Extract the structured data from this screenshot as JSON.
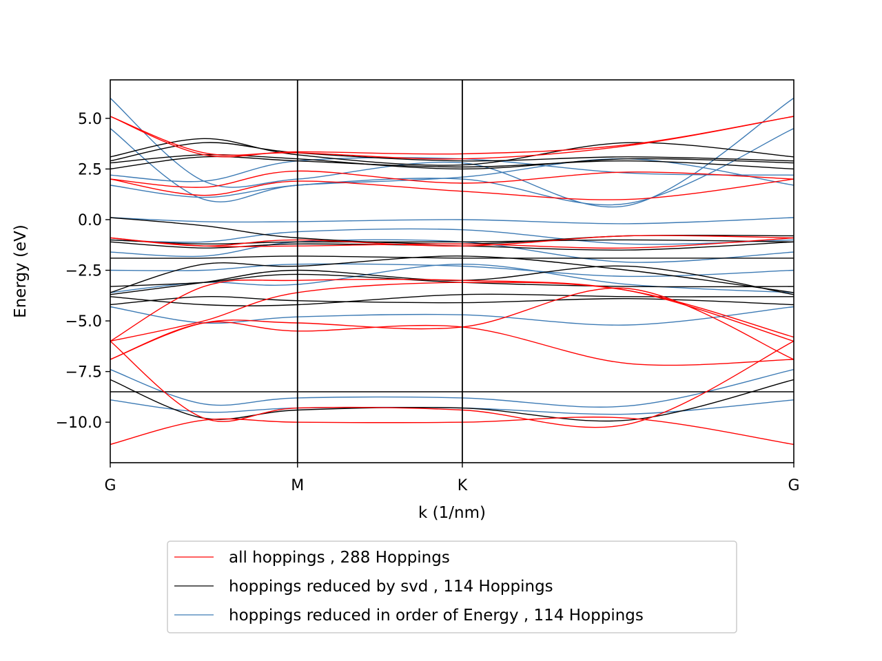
{
  "chart_data": {
    "type": "line",
    "xlabel": "k (1/nm)",
    "ylabel": "Energy (eV)",
    "ylim": [
      -12,
      6.9
    ],
    "x_ticks": [
      {
        "label": "G",
        "pos": 0.0
      },
      {
        "label": "M",
        "pos": 1.0
      },
      {
        "label": "K",
        "pos": 1.88
      },
      {
        "label": "G",
        "pos": 3.65
      }
    ],
    "y_ticks": [
      5.0,
      2.5,
      0.0,
      -2.5,
      -5.0,
      -7.5,
      -10.0
    ],
    "y_tick_labels": [
      "5.0",
      "2.5",
      "0.0",
      "−2.5",
      "−5.0",
      "−7.5",
      "−10.0"
    ],
    "legend_position": "below",
    "series": [
      {
        "name": "all hoppings , 288 Hoppings",
        "color": "#ff0000",
        "bands": [
          [
            5.1,
            3.2,
            3.35,
            3.25,
            3.7,
            5.1
          ],
          [
            5.1,
            3.3,
            3.3,
            3.0,
            3.65,
            5.1
          ],
          [
            2.0,
            1.6,
            2.4,
            1.8,
            2.35,
            2.0
          ],
          [
            2.0,
            1.2,
            1.9,
            1.4,
            1.0,
            2.0
          ],
          [
            -0.9,
            -1.3,
            -1.0,
            -1.3,
            -0.8,
            -0.9
          ],
          [
            -0.9,
            -1.3,
            -1.3,
            -1.2,
            -1.4,
            -0.9
          ],
          [
            -6.0,
            -3.3,
            -3.0,
            -3.0,
            -3.5,
            -6.0
          ],
          [
            -6.0,
            -5.0,
            -3.6,
            -3.1,
            -3.5,
            -5.8
          ],
          [
            -6.9,
            -5.1,
            -5.1,
            -5.3,
            -3.4,
            -6.9
          ],
          [
            -6.9,
            -5.1,
            -5.5,
            -5.3,
            -7.1,
            -6.9
          ],
          [
            -6.0,
            -9.8,
            -9.3,
            -9.4,
            -10.1,
            -6.0
          ],
          [
            -11.1,
            -9.9,
            -10.0,
            -10.0,
            -9.8,
            -11.1
          ]
        ]
      },
      {
        "name": "hoppings reduced by svd , 114 Hoppings",
        "color": "#000000",
        "bands": [
          [
            3.1,
            4.0,
            3.2,
            2.7,
            3.8,
            3.1
          ],
          [
            2.9,
            3.8,
            3.3,
            2.9,
            3.1,
            2.9
          ],
          [
            2.8,
            3.2,
            3.0,
            2.5,
            3.0,
            2.8
          ],
          [
            2.5,
            3.1,
            2.9,
            2.6,
            2.9,
            2.5
          ],
          [
            0.1,
            -0.3,
            -0.9,
            -1.2,
            -0.8,
            -0.8
          ],
          [
            -1.0,
            -1.2,
            -1.1,
            -1.1,
            -1.0,
            -1.1
          ],
          [
            -1.1,
            -1.4,
            -1.2,
            -1.3,
            -1.5,
            -1.1
          ],
          [
            -1.9,
            -1.9,
            -1.8,
            -1.9,
            -1.9,
            -1.9
          ],
          [
            -3.6,
            -2.2,
            -2.3,
            -1.8,
            -2.5,
            -3.6
          ],
          [
            -3.7,
            -3.1,
            -2.5,
            -3.0,
            -2.3,
            -3.7
          ],
          [
            -3.3,
            -3.1,
            -2.7,
            -3.1,
            -3.3,
            -3.3
          ],
          [
            -4.2,
            -3.8,
            -4.0,
            -4.1,
            -3.9,
            -4.2
          ],
          [
            -3.8,
            -4.2,
            -4.2,
            -3.7,
            -3.8,
            -3.8
          ],
          [
            -7.9,
            -9.8,
            -9.4,
            -9.3,
            -9.9,
            -7.9
          ],
          [
            -8.5,
            -8.5,
            -8.5,
            -8.5,
            -8.5,
            -8.5
          ]
        ]
      },
      {
        "name": "hoppings reduced in order of Energy , 114 Hoppings",
        "color": "#3c7ab4",
        "bands": [
          [
            6.0,
            1.9,
            2.0,
            2.8,
            0.7,
            6.0
          ],
          [
            4.5,
            1.0,
            1.7,
            2.0,
            0.8,
            4.5
          ],
          [
            2.2,
            1.9,
            2.9,
            3.0,
            2.3,
            2.2
          ],
          [
            1.7,
            1.1,
            1.7,
            2.1,
            3.0,
            1.7
          ],
          [
            0.1,
            -0.1,
            -0.1,
            0.0,
            -0.2,
            0.1
          ],
          [
            -1.0,
            -1.1,
            -0.6,
            -0.5,
            -1.2,
            -1.0
          ],
          [
            -1.6,
            -1.8,
            -1.1,
            -1.1,
            -2.1,
            -1.6
          ],
          [
            -2.5,
            -2.5,
            -2.2,
            -2.3,
            -2.8,
            -2.5
          ],
          [
            -3.6,
            -3.1,
            -3.2,
            -2.2,
            -3.2,
            -3.6
          ],
          [
            -4.3,
            -5.1,
            -4.8,
            -4.7,
            -5.2,
            -4.3
          ],
          [
            -7.4,
            -9.1,
            -8.8,
            -8.8,
            -9.2,
            -7.4
          ],
          [
            -8.9,
            -9.5,
            -9.3,
            -9.3,
            -9.6,
            -8.9
          ]
        ]
      }
    ]
  }
}
